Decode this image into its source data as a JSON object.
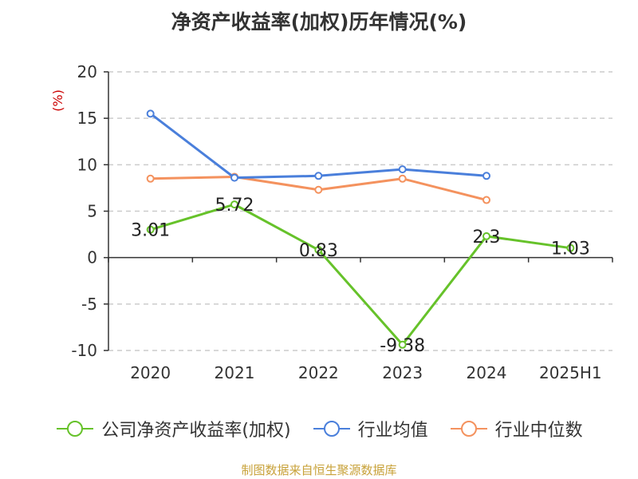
{
  "title": "净资产收益率(加权)历年情况(%)",
  "source_note": "制图数据来自恒生聚源数据库",
  "colors": {
    "title": "#333333",
    "axis": "#333333",
    "grid": "#cccccc",
    "unit_label": "#cc0000",
    "source": "#c8a23a"
  },
  "chart_data": {
    "type": "line",
    "categories": [
      "2020",
      "2021",
      "2022",
      "2023",
      "2024",
      "2025H1"
    ],
    "ylim": [
      -10,
      20
    ],
    "yticks": [
      20,
      15,
      10,
      5,
      0,
      -5,
      -10
    ],
    "ylabel": "(%)",
    "xlabel": "",
    "grid": true,
    "legend_position": "bottom",
    "series": [
      {
        "name": "公司净资产收益率(加权)",
        "color": "#66c22a",
        "values": [
          3.01,
          5.72,
          0.83,
          -9.38,
          2.3,
          1.03
        ],
        "labels": [
          "3.01",
          "5.72",
          "0.83",
          "-9.38",
          "2.3",
          "1.03"
        ]
      },
      {
        "name": "行业均值",
        "color": "#4a7fdb",
        "values": [
          15.5,
          8.6,
          8.8,
          9.5,
          8.8,
          null
        ]
      },
      {
        "name": "行业中位数",
        "color": "#f4925e",
        "values": [
          8.5,
          8.7,
          7.3,
          8.5,
          6.2,
          null
        ]
      }
    ]
  }
}
